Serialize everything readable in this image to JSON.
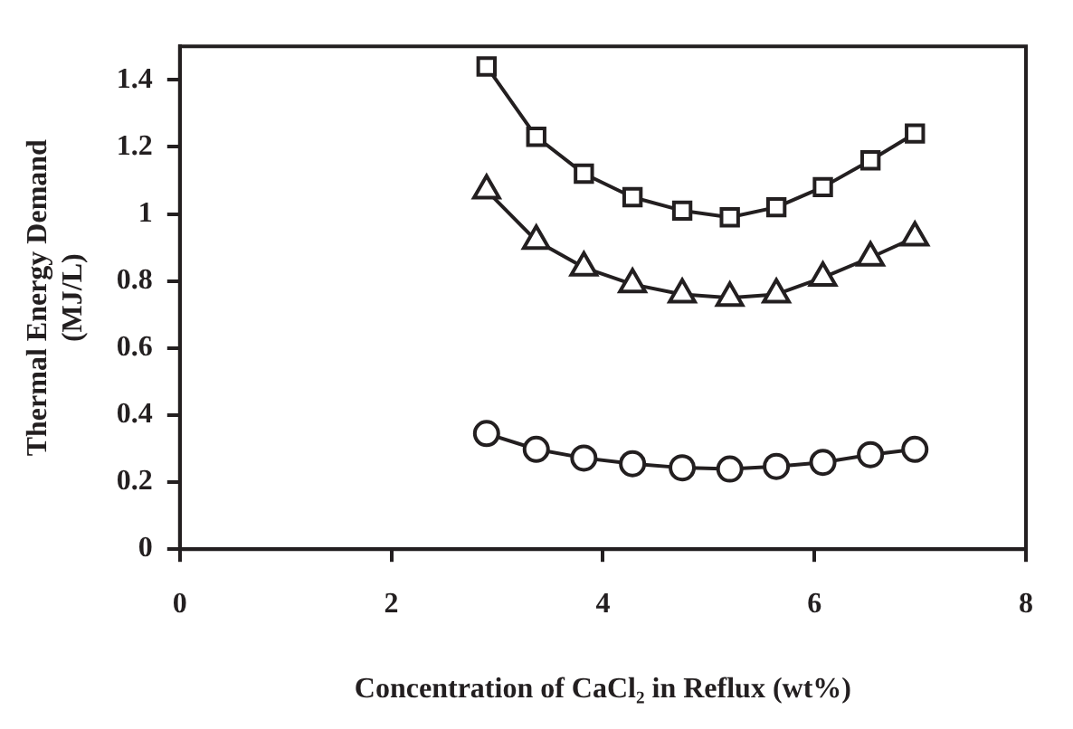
{
  "chart_data": {
    "type": "line",
    "xlabel": "Concentration of CaCl₂ in Reflux (wt%)",
    "ylabel": "Thermal Energy Demand\n(MJ/L)",
    "x": [
      2.9,
      3.37,
      3.82,
      4.28,
      4.75,
      5.2,
      5.64,
      6.08,
      6.53,
      6.95
    ],
    "series": [
      {
        "color": "#231f20",
        "marker": "square",
        "values": [
          1.44,
          1.23,
          1.12,
          1.05,
          1.01,
          0.99,
          1.02,
          1.08,
          1.16,
          1.24
        ]
      },
      {
        "color": "#231f20",
        "marker": "triangle",
        "values": [
          1.07,
          0.92,
          0.84,
          0.79,
          0.76,
          0.75,
          0.76,
          0.81,
          0.87,
          0.93
        ]
      },
      {
        "color": "#231f20",
        "marker": "circle",
        "values": [
          0.345,
          0.298,
          0.272,
          0.255,
          0.243,
          0.239,
          0.247,
          0.259,
          0.282,
          0.298
        ]
      }
    ],
    "xlim": [
      0,
      8
    ],
    "xticks": [
      0,
      2,
      4,
      6,
      8
    ],
    "ylim": [
      0,
      1.5
    ],
    "yticks": [
      0,
      0.2,
      0.4,
      0.6,
      0.8,
      1,
      1.2,
      1.4
    ],
    "grid": false,
    "line_style": "solid"
  }
}
